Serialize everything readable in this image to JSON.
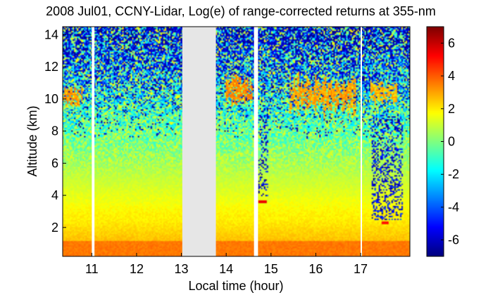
{
  "chart_data": {
    "type": "heatmap",
    "title": "2008 Jul01, CCNY-Lidar, Log(e) of range-corrected returns at 355-nm",
    "xlabel": "Local time (hour)",
    "ylabel": "Altitude (km)",
    "xlim": [
      10.35,
      18.1
    ],
    "ylim": [
      0.2,
      14.5
    ],
    "x_ticks": [
      11,
      12,
      13,
      14,
      15,
      16,
      17
    ],
    "y_ticks": [
      2,
      4,
      6,
      8,
      10,
      12,
      14
    ],
    "colorbar": {
      "colormap": "jet",
      "range": [
        -7,
        7
      ],
      "ticks": [
        -6,
        -4,
        -2,
        0,
        2,
        4,
        6
      ]
    },
    "gaps": [
      {
        "start": 11.0,
        "end": 11.06
      },
      {
        "start": 13.02,
        "end": 13.77
      },
      {
        "start": 14.62,
        "end": 14.71
      },
      {
        "start": 17.0,
        "end": 17.02
      }
    ],
    "features": {
      "boundary_layer": {
        "altitude_km": [
          0.2,
          1.2
        ],
        "log_return": 3.6
      },
      "near_field_layer": {
        "altitude_km": [
          1.2,
          2.6
        ],
        "log_return": 2.6
      },
      "cirrus_clouds": [
        {
          "time": [
            10.35,
            10.8
          ],
          "altitude_km": [
            9.7,
            10.6
          ],
          "log_return": 3.2
        },
        {
          "time": [
            14.0,
            14.6
          ],
          "altitude_km": [
            9.8,
            11.3
          ],
          "log_return": 3.4
        },
        {
          "time": [
            15.4,
            16.9
          ],
          "altitude_km": [
            9.2,
            11.2
          ],
          "log_return": 3.0
        },
        {
          "time": [
            17.2,
            17.8
          ],
          "altitude_km": [
            9.8,
            11.0
          ],
          "log_return": 2.8
        }
      ],
      "low_clouds": [
        {
          "time": 14.8,
          "altitude_km": 3.6,
          "log_return": 5.5
        },
        {
          "time": 17.55,
          "altitude_km": 2.3,
          "log_return": 5.0
        }
      ]
    }
  }
}
